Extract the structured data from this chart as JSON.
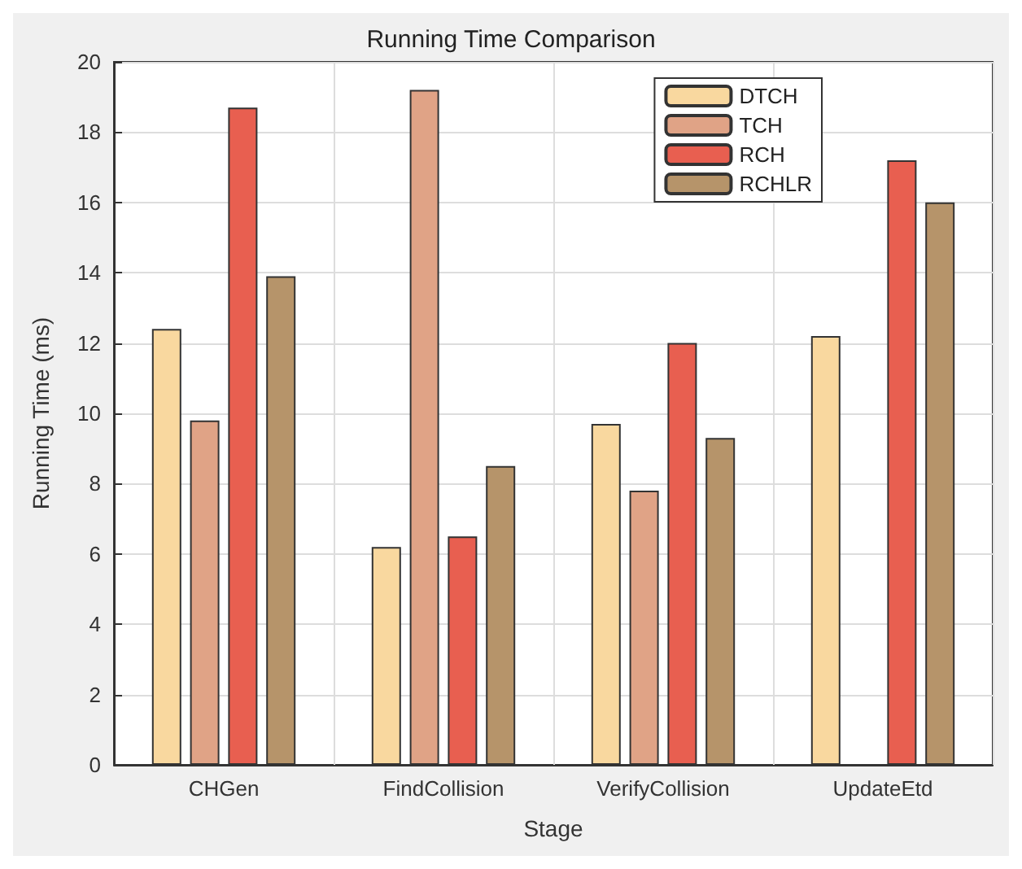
{
  "chart_data": {
    "type": "bar",
    "title": "Running Time Comparison",
    "xlabel": "Stage",
    "ylabel": "Running Time (ms)",
    "categories": [
      "CHGen",
      "FindCollision",
      "VerifyCollision",
      "UpdateEtd"
    ],
    "series": [
      {
        "name": "DTCH",
        "color": "#f9d89f",
        "values": [
          12.4,
          6.2,
          9.7,
          12.2
        ]
      },
      {
        "name": "TCH",
        "color": "#e0a386",
        "values": [
          9.8,
          19.2,
          7.8,
          null
        ]
      },
      {
        "name": "RCH",
        "color": "#e85f50",
        "values": [
          18.7,
          6.5,
          12.0,
          17.2
        ]
      },
      {
        "name": "RCHLR",
        "color": "#b6946a",
        "values": [
          13.9,
          8.5,
          9.3,
          16.0
        ]
      }
    ],
    "ylim": [
      0,
      20
    ],
    "yticks": [
      0,
      2,
      4,
      6,
      8,
      10,
      12,
      14,
      16,
      18,
      20
    ],
    "grid": true,
    "legend": "top right"
  }
}
